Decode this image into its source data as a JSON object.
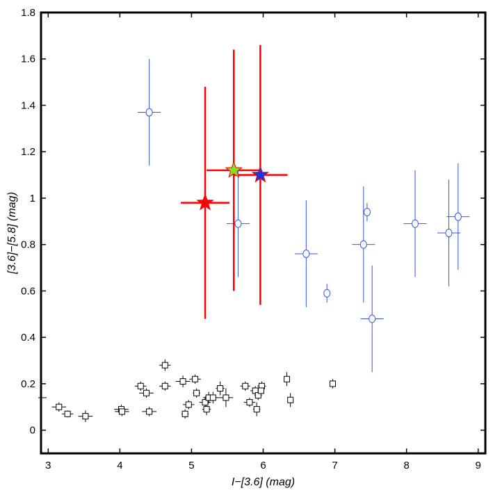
{
  "chart_data": {
    "type": "scatter",
    "title": "",
    "xlabel": "I−[3.6] (mag)",
    "ylabel": "[3.6]−[5.8] (mag)",
    "xlim": [
      2.9,
      9.1
    ],
    "ylim": [
      -0.1,
      1.8
    ],
    "xticks": [
      3,
      4,
      5,
      6,
      7,
      8,
      9
    ],
    "xtick_labels": [
      "3",
      "4",
      "5",
      "6",
      "7",
      "8",
      "9"
    ],
    "yticks": [
      0,
      0.2,
      0.4,
      0.6,
      0.8,
      1.0,
      1.2,
      1.4,
      1.6,
      1.8
    ],
    "ytick_labels": [
      "0",
      "0.2",
      "0.4",
      "0.6",
      "0.8",
      "1",
      "1.2",
      "1.4",
      "1.6",
      "1.8"
    ],
    "grid": false,
    "legend": "none",
    "series": [
      {
        "marker": "square",
        "color": "#000000",
        "points": [
          {
            "x": 3.15,
            "y": 0.1,
            "xerr": 0.1,
            "yerr": 0.02
          },
          {
            "x": 3.27,
            "y": 0.07,
            "xerr": 0.08,
            "yerr": 0.015
          },
          {
            "x": 3.52,
            "y": 0.06,
            "xerr": 0.1,
            "yerr": 0.025
          },
          {
            "x": 4.02,
            "y": 0.09,
            "xerr": 0.1,
            "yerr": 0.02
          },
          {
            "x": 4.03,
            "y": 0.08,
            "xerr": 0.1,
            "yerr": 0.02
          },
          {
            "x": 4.29,
            "y": 0.19,
            "xerr": 0.08,
            "yerr": 0.02
          },
          {
            "x": 4.37,
            "y": 0.16,
            "xerr": 0.1,
            "yerr": 0.02
          },
          {
            "x": 4.41,
            "y": 0.08,
            "xerr": 0.1,
            "yerr": 0.02
          },
          {
            "x": 4.63,
            "y": 0.28,
            "xerr": 0.08,
            "yerr": 0.025
          },
          {
            "x": 4.63,
            "y": 0.19,
            "xerr": 0.08,
            "yerr": 0.02
          },
          {
            "x": 4.88,
            "y": 0.21,
            "xerr": 0.1,
            "yerr": 0.025
          },
          {
            "x": 4.91,
            "y": 0.07,
            "xerr": 0.05,
            "yerr": 0.02
          },
          {
            "x": 4.96,
            "y": 0.11,
            "xerr": 0.08,
            "yerr": 0.02
          },
          {
            "x": 5.05,
            "y": 0.22,
            "xerr": 0.08,
            "yerr": 0.02
          },
          {
            "x": 5.07,
            "y": 0.16,
            "xerr": 0.05,
            "yerr": 0.02
          },
          {
            "x": 5.19,
            "y": 0.12,
            "xerr": 0.08,
            "yerr": 0.025
          },
          {
            "x": 5.21,
            "y": 0.09,
            "xerr": 0.06,
            "yerr": 0.025
          },
          {
            "x": 5.24,
            "y": 0.14,
            "xerr": 0.08,
            "yerr": 0.025
          },
          {
            "x": 5.3,
            "y": 0.14,
            "xerr": 0.08,
            "yerr": 0.025
          },
          {
            "x": 5.4,
            "y": 0.18,
            "xerr": 0.06,
            "yerr": 0.03
          },
          {
            "x": 5.48,
            "y": 0.14,
            "xerr": 0.1,
            "yerr": 0.04
          },
          {
            "x": 5.75,
            "y": 0.19,
            "xerr": 0.07,
            "yerr": 0.02
          },
          {
            "x": 5.81,
            "y": 0.12,
            "xerr": 0.08,
            "yerr": 0.02
          },
          {
            "x": 5.89,
            "y": 0.17,
            "xerr": 0.07,
            "yerr": 0.02
          },
          {
            "x": 5.91,
            "y": 0.09,
            "xerr": 0.05,
            "yerr": 0.03
          },
          {
            "x": 5.93,
            "y": 0.15,
            "xerr": 0.05,
            "yerr": 0.02
          },
          {
            "x": 5.98,
            "y": 0.19,
            "xerr": 0.06,
            "yerr": 0.02
          },
          {
            "x": 5.97,
            "y": 0.17,
            "xerr": 0.04,
            "yerr": 0.02
          },
          {
            "x": 6.33,
            "y": 0.22,
            "xerr": 0.04,
            "yerr": 0.03
          },
          {
            "x": 6.38,
            "y": 0.13,
            "xerr": 0.03,
            "yerr": 0.03
          },
          {
            "x": 6.97,
            "y": 0.2,
            "xerr": 0.04,
            "yerr": 0.02
          }
        ]
      },
      {
        "marker": "circle",
        "color": "#3355dd",
        "points": [
          {
            "x": 4.41,
            "y": 1.37,
            "xerr": 0.16,
            "yerr": 0.23
          },
          {
            "x": 5.65,
            "y": 0.89,
            "xerr": 0.16,
            "yerr": 0.23
          },
          {
            "x": 6.6,
            "y": 0.76,
            "xerr": 0.16,
            "yerr": 0.23
          },
          {
            "x": 6.89,
            "y": 0.59,
            "xerr": 0.03,
            "yerr": 0.04
          },
          {
            "x": 7.4,
            "y": 0.8,
            "xerr": 0.16,
            "yerr": 0.25
          },
          {
            "x": 7.45,
            "y": 0.94,
            "xerr": 0.03,
            "yerr": 0.04
          },
          {
            "x": 7.52,
            "y": 0.48,
            "xerr": 0.16,
            "yerr": 0.23
          },
          {
            "x": 8.12,
            "y": 0.89,
            "xerr": 0.16,
            "yerr": 0.23
          },
          {
            "x": 8.59,
            "y": 0.85,
            "xerr": 0.16,
            "yerr": 0.23
          },
          {
            "x": 8.72,
            "y": 0.92,
            "xerr": 0.16,
            "yerr": 0.23
          }
        ]
      },
      {
        "marker": "star",
        "color": "#ff0000",
        "points": [
          {
            "x": 5.19,
            "y": 0.98,
            "xerr": 0.34,
            "yerr": 0.5,
            "fill": "#ff0000"
          },
          {
            "x": 5.59,
            "y": 1.12,
            "xerr": 0.38,
            "yerr": 0.52,
            "fill": "#88dd22"
          },
          {
            "x": 5.96,
            "y": 1.1,
            "xerr": 0.38,
            "yerr": 0.56,
            "fill": "#2233dd"
          }
        ]
      }
    ]
  }
}
